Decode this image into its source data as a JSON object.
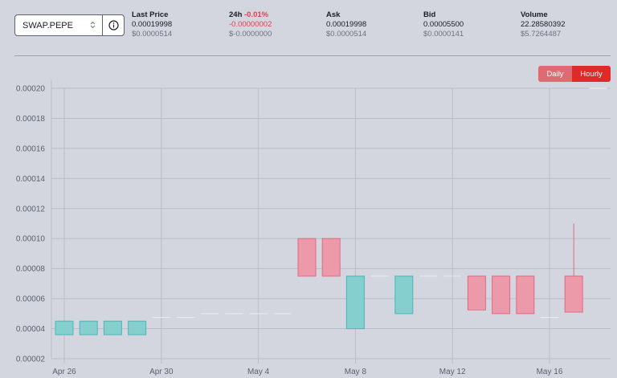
{
  "market_select": {
    "value": "SWAP.PEPE",
    "chevron_icon": "up-down-chevron-icon",
    "info_icon": "info-circle-icon"
  },
  "stats": {
    "last_price": {
      "label": "Last Price",
      "value": "0.00019998",
      "usd": "$0.0000514"
    },
    "change_24h": {
      "label": "24h",
      "percent": "-0.01%",
      "value": "-0.00000002",
      "usd": "$-0.0000000"
    },
    "ask": {
      "label": "Ask",
      "value": "0.00019998",
      "usd": "$0.0000514"
    },
    "bid": {
      "label": "Bid",
      "value": "0.00005500",
      "usd": "$0.0000141"
    },
    "volume": {
      "label": "Volume",
      "value": "22.28580392",
      "usd": "$5.7264487"
    }
  },
  "interval_toggle": {
    "daily": "Daily",
    "hourly": "Hourly",
    "active": "Hourly"
  },
  "colors": {
    "up": "#86cfcf",
    "up_border": "#4fb5b5",
    "down": "#ec9aaa",
    "down_border": "#e06a85",
    "accent_red": "#df2a2a"
  },
  "chart_data": {
    "type": "candlestick",
    "title": "",
    "xlabel": "",
    "ylabel": "",
    "ylim": [
      2e-05,
      0.0002
    ],
    "y_ticks": [
      "0.00002",
      "0.00004",
      "0.00006",
      "0.00008",
      "0.00010",
      "0.00012",
      "0.00014",
      "0.00016",
      "0.00018",
      "0.00020"
    ],
    "x_ticks": [
      {
        "label": "Apr 26",
        "day": 0
      },
      {
        "label": "Apr 30",
        "day": 4
      },
      {
        "label": "May 4",
        "day": 8
      },
      {
        "label": "May 8",
        "day": 12
      },
      {
        "label": "May 12",
        "day": 16
      },
      {
        "label": "May 16",
        "day": 20
      }
    ],
    "grid": true,
    "candles": [
      {
        "day": 0,
        "open": 3.6e-05,
        "close": 4.5e-05,
        "high": 4.5e-05,
        "low": 3.6e-05
      },
      {
        "day": 1,
        "open": 3.6e-05,
        "close": 4.5e-05,
        "high": 4.5e-05,
        "low": 3.6e-05
      },
      {
        "day": 2,
        "open": 3.6e-05,
        "close": 4.5e-05,
        "high": 4.5e-05,
        "low": 3.6e-05
      },
      {
        "day": 3,
        "open": 3.6e-05,
        "close": 4.5e-05,
        "high": 4.5e-05,
        "low": 3.6e-05
      },
      {
        "day": 4,
        "open": 4.75e-05,
        "close": 4.75e-05,
        "high": 4.75e-05,
        "low": 4.75e-05
      },
      {
        "day": 5,
        "open": 4.75e-05,
        "close": 4.75e-05,
        "high": 4.75e-05,
        "low": 4.75e-05
      },
      {
        "day": 6,
        "open": 5e-05,
        "close": 5e-05,
        "high": 5e-05,
        "low": 5e-05
      },
      {
        "day": 7,
        "open": 5e-05,
        "close": 5e-05,
        "high": 5e-05,
        "low": 5e-05
      },
      {
        "day": 8,
        "open": 5e-05,
        "close": 5e-05,
        "high": 5e-05,
        "low": 5e-05
      },
      {
        "day": 9,
        "open": 5e-05,
        "close": 5e-05,
        "high": 5e-05,
        "low": 5e-05
      },
      {
        "day": 10,
        "open": 0.0001,
        "close": 7.5e-05,
        "high": 0.0001,
        "low": 7.5e-05
      },
      {
        "day": 11,
        "open": 0.0001,
        "close": 7.5e-05,
        "high": 0.0001,
        "low": 7.5e-05
      },
      {
        "day": 12,
        "open": 4e-05,
        "close": 7.5e-05,
        "high": 7.5e-05,
        "low": 4e-05
      },
      {
        "day": 13,
        "open": 7.5e-05,
        "close": 7.5e-05,
        "high": 7.5e-05,
        "low": 7.5e-05
      },
      {
        "day": 14,
        "open": 5e-05,
        "close": 7.5e-05,
        "high": 7.5e-05,
        "low": 5e-05
      },
      {
        "day": 15,
        "open": 7.5e-05,
        "close": 7.5e-05,
        "high": 7.5e-05,
        "low": 7.5e-05
      },
      {
        "day": 16,
        "open": 7.5e-05,
        "close": 7.5e-05,
        "high": 7.5e-05,
        "low": 7.5e-05
      },
      {
        "day": 17,
        "open": 7.5e-05,
        "close": 5.25e-05,
        "high": 7.5e-05,
        "low": 5.25e-05
      },
      {
        "day": 18,
        "open": 7.5e-05,
        "close": 5e-05,
        "high": 7.5e-05,
        "low": 5e-05
      },
      {
        "day": 19,
        "open": 7.5e-05,
        "close": 5e-05,
        "high": 7.5e-05,
        "low": 5e-05
      },
      {
        "day": 20,
        "open": 4.75e-05,
        "close": 4.75e-05,
        "high": 4.75e-05,
        "low": 4.75e-05
      },
      {
        "day": 21,
        "open": 7.5e-05,
        "close": 5.1e-05,
        "high": 0.00011,
        "low": 5.1e-05
      },
      {
        "day": 22,
        "open": 0.0002,
        "close": 0.0002,
        "high": 0.0002,
        "low": 0.0002
      }
    ]
  }
}
